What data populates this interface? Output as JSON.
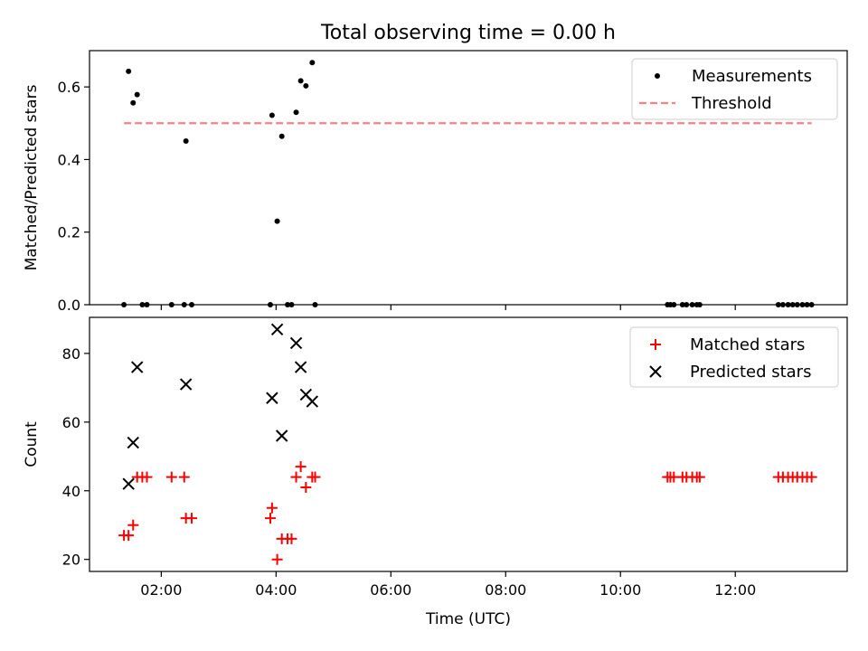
{
  "figure": {
    "title": "Total observing time = 0.00 h"
  },
  "chart_data": [
    {
      "type": "scatter",
      "title": "Total observing time = 0.00 h",
      "xlabel": "",
      "ylabel": "Matched/Predicted stars",
      "xlim": [
        0.75,
        13.95
      ],
      "ylim": [
        0.0,
        0.7
      ],
      "yticks": [
        0.0,
        0.2,
        0.4,
        0.6
      ],
      "ytick_labels": [
        "0.0",
        "0.2",
        "0.4",
        "0.6"
      ],
      "xticks": [
        2,
        4,
        6,
        8,
        10,
        12
      ],
      "legend": {
        "placement": "upper right",
        "entries": [
          "Measurements",
          "Threshold"
        ]
      },
      "series": [
        {
          "name": "Measurements",
          "marker": "dot",
          "color": "#000000",
          "points": [
            [
              1.35,
              0.0
            ],
            [
              1.43,
              0.643
            ],
            [
              1.51,
              0.556
            ],
            [
              1.58,
              0.579
            ],
            [
              1.67,
              0.0
            ],
            [
              1.75,
              0.0
            ],
            [
              2.18,
              0.0
            ],
            [
              2.4,
              0.0
            ],
            [
              2.43,
              0.451
            ],
            [
              2.53,
              0.0
            ],
            [
              3.9,
              0.0
            ],
            [
              3.93,
              0.522
            ],
            [
              4.02,
              0.23
            ],
            [
              4.1,
              0.464
            ],
            [
              4.2,
              0.0
            ],
            [
              4.27,
              0.0
            ],
            [
              4.35,
              0.53
            ],
            [
              4.43,
              0.617
            ],
            [
              4.52,
              0.603
            ],
            [
              4.63,
              0.667
            ],
            [
              4.68,
              0.0
            ],
            [
              10.82,
              0.0
            ],
            [
              10.87,
              0.0
            ],
            [
              10.93,
              0.0
            ],
            [
              11.08,
              0.0
            ],
            [
              11.15,
              0.0
            ],
            [
              11.25,
              0.0
            ],
            [
              11.33,
              0.0
            ],
            [
              11.38,
              0.0
            ],
            [
              12.75,
              0.0
            ],
            [
              12.83,
              0.0
            ],
            [
              12.92,
              0.0
            ],
            [
              13.0,
              0.0
            ],
            [
              13.08,
              0.0
            ],
            [
              13.17,
              0.0
            ],
            [
              13.25,
              0.0
            ],
            [
              13.33,
              0.0
            ]
          ]
        },
        {
          "name": "Threshold",
          "style": "dashed",
          "color": "#ff8080",
          "points": [
            [
              1.35,
              0.5
            ],
            [
              13.33,
              0.5
            ]
          ]
        }
      ]
    },
    {
      "type": "scatter",
      "xlabel": "Time (UTC)",
      "ylabel": "Count",
      "xlim": [
        0.75,
        13.95
      ],
      "ylim": [
        16.5,
        90.5
      ],
      "yticks": [
        20,
        40,
        60,
        80
      ],
      "ytick_labels": [
        "20",
        "40",
        "60",
        "80"
      ],
      "xticks": [
        2,
        4,
        6,
        8,
        10,
        12
      ],
      "xtick_labels": [
        "02:00",
        "04:00",
        "06:00",
        "08:00",
        "10:00",
        "12:00"
      ],
      "legend": {
        "placement": "upper right",
        "entries": [
          "Matched stars",
          "Predicted stars"
        ]
      },
      "series": [
        {
          "name": "Matched stars",
          "marker": "plus",
          "color": "#ff0000",
          "points": [
            [
              1.35,
              27
            ],
            [
              1.43,
              27
            ],
            [
              1.51,
              30
            ],
            [
              1.58,
              44
            ],
            [
              1.67,
              44
            ],
            [
              1.75,
              44
            ],
            [
              2.18,
              44
            ],
            [
              2.4,
              44
            ],
            [
              2.43,
              32
            ],
            [
              2.53,
              32
            ],
            [
              3.9,
              32
            ],
            [
              3.93,
              35
            ],
            [
              4.02,
              20
            ],
            [
              4.1,
              26
            ],
            [
              4.2,
              26
            ],
            [
              4.27,
              26
            ],
            [
              4.35,
              44
            ],
            [
              4.43,
              47
            ],
            [
              4.52,
              41
            ],
            [
              4.63,
              44
            ],
            [
              4.68,
              44
            ],
            [
              10.82,
              44
            ],
            [
              10.87,
              44
            ],
            [
              10.93,
              44
            ],
            [
              11.08,
              44
            ],
            [
              11.15,
              44
            ],
            [
              11.25,
              44
            ],
            [
              11.33,
              44
            ],
            [
              11.38,
              44
            ],
            [
              12.75,
              44
            ],
            [
              12.83,
              44
            ],
            [
              12.92,
              44
            ],
            [
              13.0,
              44
            ],
            [
              13.08,
              44
            ],
            [
              13.17,
              44
            ],
            [
              13.25,
              44
            ],
            [
              13.33,
              44
            ]
          ]
        },
        {
          "name": "Predicted stars",
          "marker": "x",
          "color": "#000000",
          "points": [
            [
              1.43,
              42
            ],
            [
              1.51,
              54
            ],
            [
              1.58,
              76
            ],
            [
              2.43,
              71
            ],
            [
              3.93,
              67
            ],
            [
              4.02,
              87
            ],
            [
              4.1,
              56
            ],
            [
              4.35,
              83
            ],
            [
              4.43,
              76
            ],
            [
              4.52,
              68
            ],
            [
              4.63,
              66
            ]
          ]
        }
      ]
    }
  ]
}
